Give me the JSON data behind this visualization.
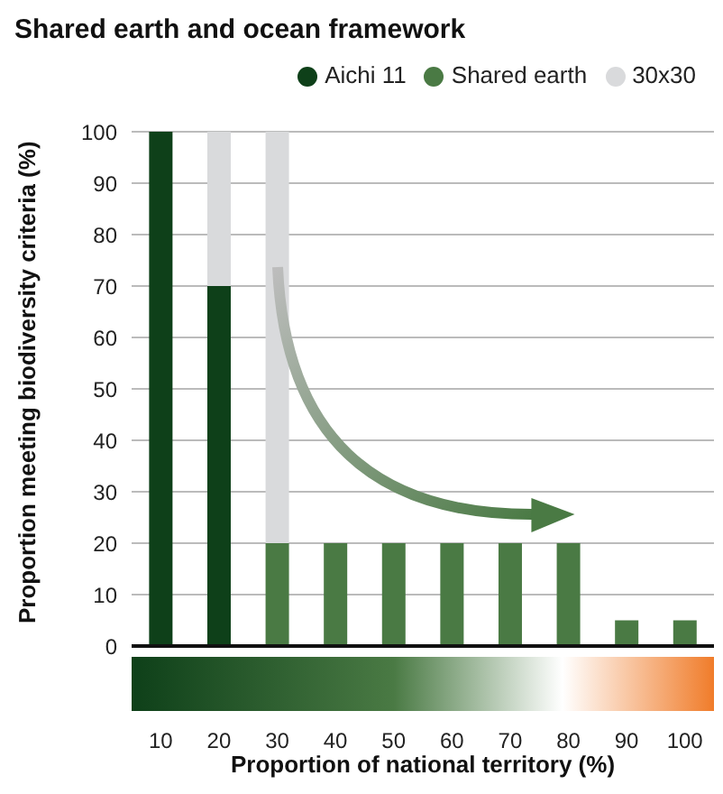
{
  "chart_data": {
    "type": "bar",
    "title": "Shared earth and ocean framework",
    "xlabel": "Proportion of national territory (%)",
    "ylabel": "Proportion meeting biodiversity criteria (%)",
    "categories": [
      "10",
      "20",
      "30",
      "40",
      "50",
      "60",
      "70",
      "80",
      "90",
      "100"
    ],
    "stacked": true,
    "series": [
      {
        "name": "Aichi 11",
        "color": "#0e4019",
        "values": [
          100,
          70,
          null,
          null,
          null,
          null,
          null,
          null,
          null,
          null
        ]
      },
      {
        "name": "Shared earth",
        "color": "#4a7a44",
        "values": [
          null,
          null,
          20,
          20,
          20,
          20,
          20,
          20,
          5,
          5
        ]
      },
      {
        "name": "30x30",
        "color": "#d9dadc",
        "values": [
          null,
          30,
          80,
          null,
          null,
          null,
          null,
          null,
          null,
          null
        ]
      }
    ],
    "ylim": [
      0,
      100
    ],
    "yticks": [
      0,
      10,
      20,
      30,
      40,
      50,
      60,
      70,
      80,
      90,
      100
    ],
    "grid": "y",
    "legend": "top right"
  }
}
